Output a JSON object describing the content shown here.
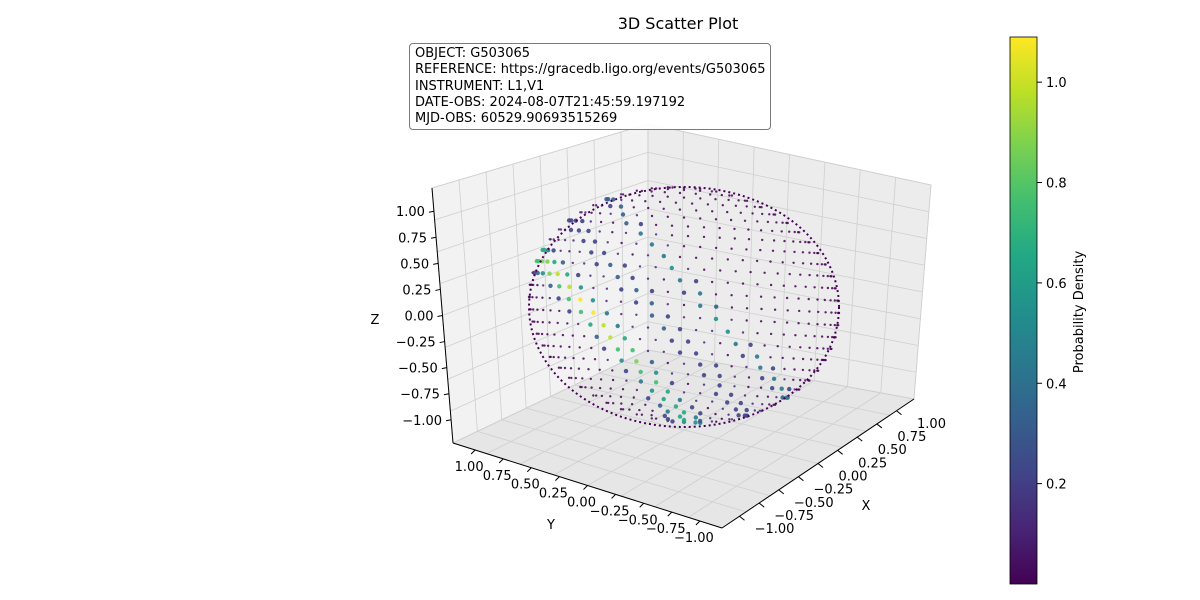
{
  "chart_data": {
    "type": "scatter",
    "projection": "3d",
    "title": "3D Scatter Plot",
    "xlabel": "X",
    "ylabel": "Y",
    "zlabel": "Z",
    "xlim": [
      -1.0,
      1.0
    ],
    "ylim": [
      -1.0,
      1.0
    ],
    "zlim": [
      -1.0,
      1.0
    ],
    "x_ticks": [
      "−1.00",
      "−0.75",
      "−0.50",
      "−0.25",
      "0.00",
      "0.25",
      "0.50",
      "0.75",
      "1.00"
    ],
    "y_ticks": [
      "1.00",
      "0.75",
      "0.50",
      "0.25",
      "0.00",
      "−0.25",
      "−0.50",
      "−0.75",
      "−1.00"
    ],
    "z_ticks": [
      "−1.00",
      "−0.75",
      "−0.50",
      "−0.25",
      "0.00",
      "0.25",
      "0.50",
      "0.75",
      "1.00"
    ],
    "points": "unit sphere surface (HEALPix sky map), color = probability density",
    "colormap": "viridis",
    "colorbar": {
      "label": "Probability Density",
      "ticks": [
        "0.2",
        "0.4",
        "0.6",
        "0.8",
        "1.0"
      ],
      "range": [
        0.0,
        1.09
      ]
    },
    "grid": true
  },
  "info_box": {
    "lines": [
      "OBJECT: G503065",
      "REFERENCE: https://gracedb.ligo.org/events/G503065",
      "INSTRUMENT: L1,V1",
      "DATE-OBS: 2024-08-07T21:45:59.197192",
      "MJD-OBS: 60529.90693515269"
    ]
  }
}
